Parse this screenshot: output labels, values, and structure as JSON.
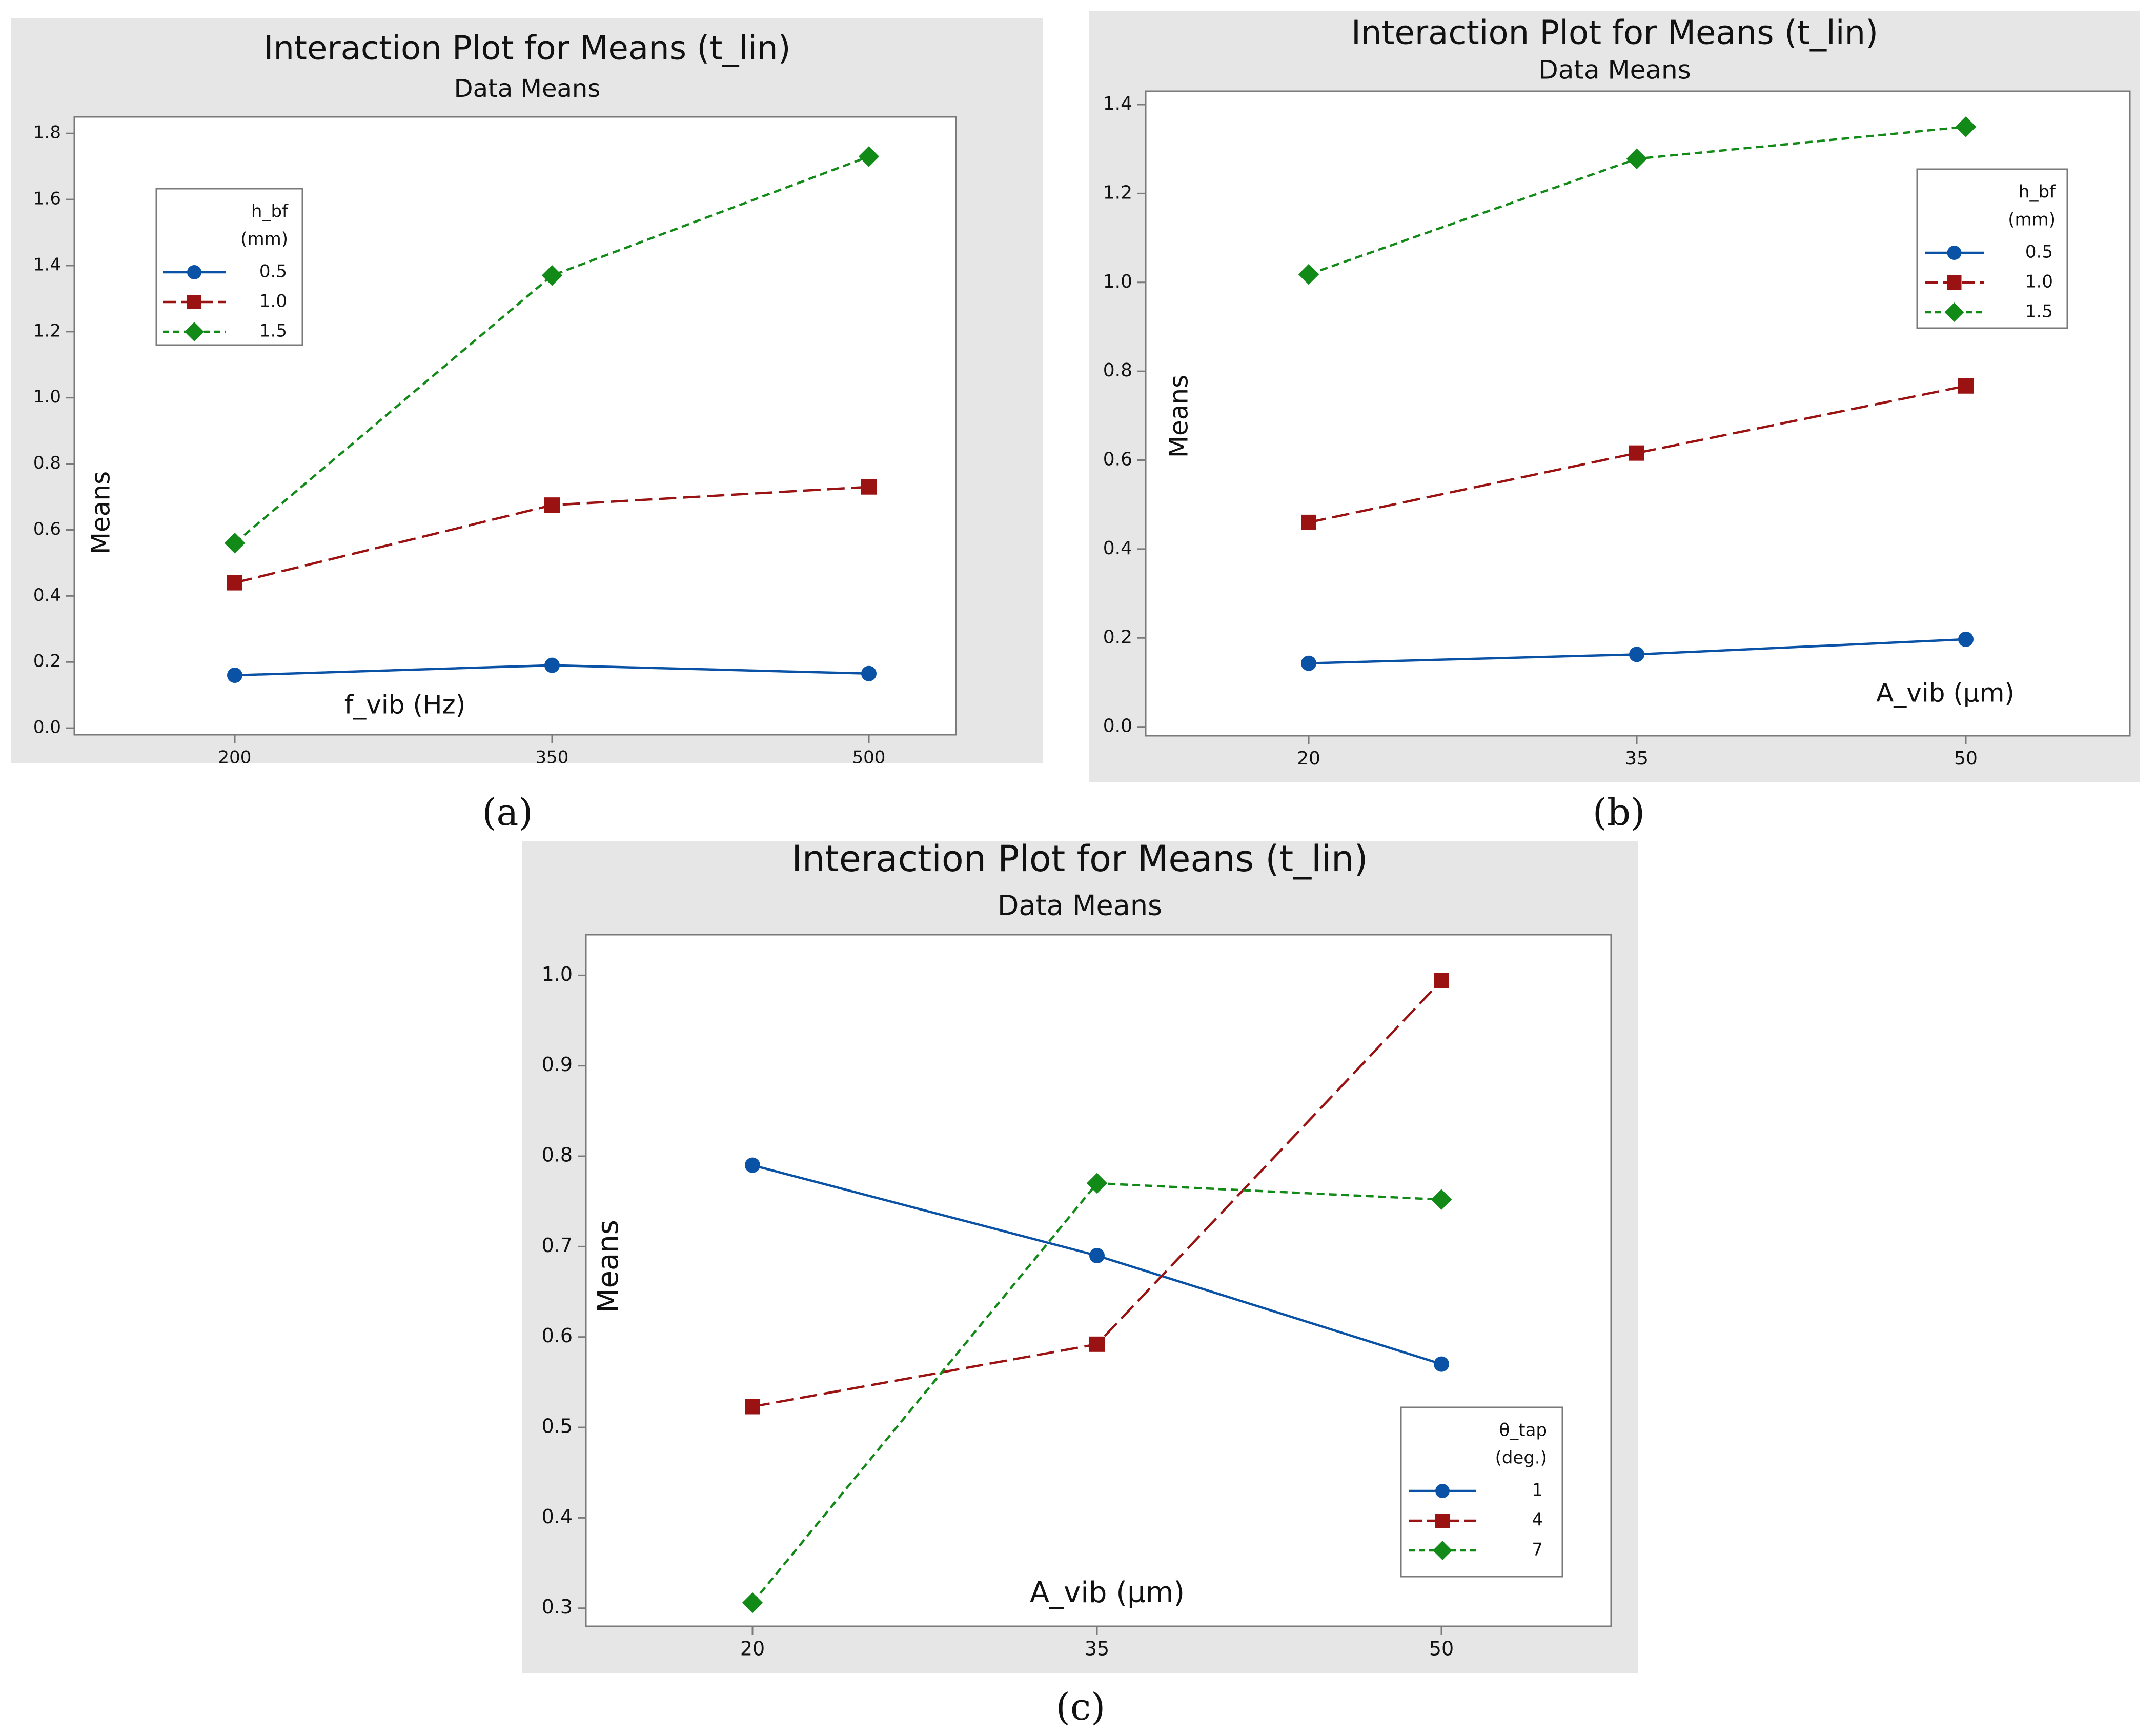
{
  "colors": {
    "series1": "#0a52a5",
    "series2": "#9b1212",
    "series3": "#128a18",
    "panel_bg": "#e6e6e6",
    "plot_bg": "#ffffff",
    "frame": "#7a7a7a"
  },
  "chart_data": [
    {
      "type": "line",
      "panel_label": "(a)",
      "title": "Interaction Plot for Means (t_lin)",
      "subtitle": "Data Means",
      "xlabel": "f_vib (Hz)",
      "ylabel": "Means",
      "categories": [
        "200",
        "350",
        "500"
      ],
      "ylim": [
        -0.02,
        1.85
      ],
      "yticks": [
        "0.0",
        "0.2",
        "0.4",
        "0.6",
        "0.8",
        "1.0",
        "1.2",
        "1.4",
        "1.6",
        "1.8"
      ],
      "legend": {
        "title_line1": "h_bf",
        "title_line2": "(mm)",
        "position": "top-left"
      },
      "series": [
        {
          "name": "0.5",
          "values": [
            0.16,
            0.19,
            0.165
          ]
        },
        {
          "name": "1.0",
          "values": [
            0.44,
            0.675,
            0.73
          ]
        },
        {
          "name": "1.5",
          "values": [
            0.56,
            1.37,
            1.73
          ]
        }
      ]
    },
    {
      "type": "line",
      "panel_label": "(b)",
      "title": "Interaction Plot for Means (t_lin)",
      "subtitle": "Data Means",
      "xlabel": "A_vib (µm)",
      "ylabel": "Means",
      "categories": [
        "20",
        "35",
        "50"
      ],
      "ylim": [
        -0.02,
        1.43
      ],
      "yticks": [
        "0.0",
        "0.2",
        "0.4",
        "0.6",
        "0.8",
        "1.0",
        "1.2",
        "1.4"
      ],
      "legend": {
        "title_line1": "h_bf",
        "title_line2": "(mm)",
        "position": "top-right"
      },
      "series": [
        {
          "name": "0.5",
          "values": [
            0.143,
            0.163,
            0.197
          ]
        },
        {
          "name": "1.0",
          "values": [
            0.46,
            0.616,
            0.767
          ]
        },
        {
          "name": "1.5",
          "values": [
            1.018,
            1.278,
            1.35
          ]
        }
      ]
    },
    {
      "type": "line",
      "panel_label": "(c)",
      "title": "Interaction Plot for Means (t_lin)",
      "subtitle": "Data Means",
      "xlabel": "A_vib (µm)",
      "ylabel": "Means",
      "categories": [
        "20",
        "35",
        "50"
      ],
      "ylim": [
        0.28,
        1.045
      ],
      "yticks": [
        "0.3",
        "0.4",
        "0.5",
        "0.6",
        "0.7",
        "0.8",
        "0.9",
        "1.0"
      ],
      "legend": {
        "title_line1": "θ_tap",
        "title_line2": "(deg.)",
        "position": "bottom-right"
      },
      "series": [
        {
          "name": "1",
          "values": [
            0.79,
            0.69,
            0.57
          ]
        },
        {
          "name": "4",
          "values": [
            0.523,
            0.592,
            0.994
          ]
        },
        {
          "name": "7",
          "values": [
            0.306,
            0.77,
            0.752
          ]
        }
      ]
    }
  ]
}
